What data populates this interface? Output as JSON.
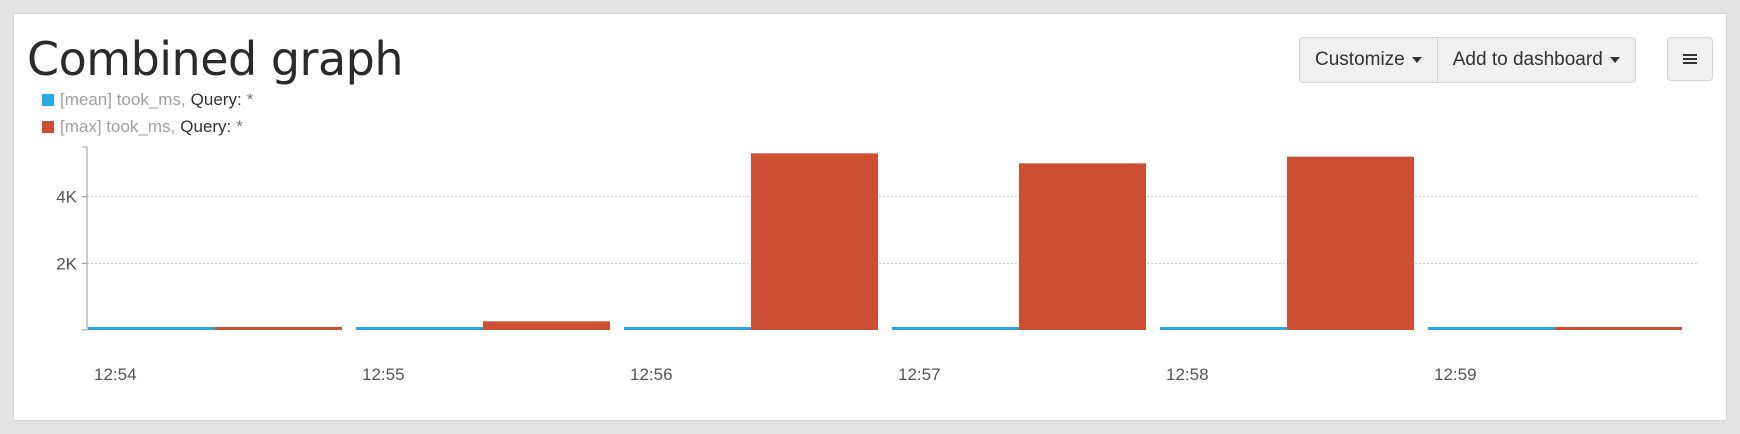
{
  "header": {
    "title": "Combined graph",
    "customize_label": "Customize",
    "add_dashboard_label": "Add to dashboard",
    "menu_icon": "hamburger-icon"
  },
  "legend": [
    {
      "name": "[mean] took_ms,",
      "query_label": "Query:",
      "query_value": "*",
      "color": "#2aa7e3"
    },
    {
      "name": "[max] took_ms,",
      "query_label": "Query:",
      "query_value": "*",
      "color": "#cc4f33"
    }
  ],
  "chart_data": {
    "type": "bar",
    "categories": [
      "12:54",
      "12:55",
      "12:56",
      "12:57",
      "12:58",
      "12:59"
    ],
    "series": [
      {
        "name": "[mean] took_ms",
        "color": "#2aa7e3",
        "values": [
          60,
          60,
          80,
          90,
          90,
          60
        ]
      },
      {
        "name": "[max] took_ms",
        "color": "#cc4f33",
        "values": [
          90,
          260,
          5300,
          5000,
          5200,
          90
        ]
      }
    ],
    "yticks": [
      "2K",
      "4K"
    ],
    "ytick_values": [
      2000,
      4000
    ],
    "ylim": [
      0,
      5400
    ],
    "grid": true,
    "legend_position": "top-left"
  }
}
